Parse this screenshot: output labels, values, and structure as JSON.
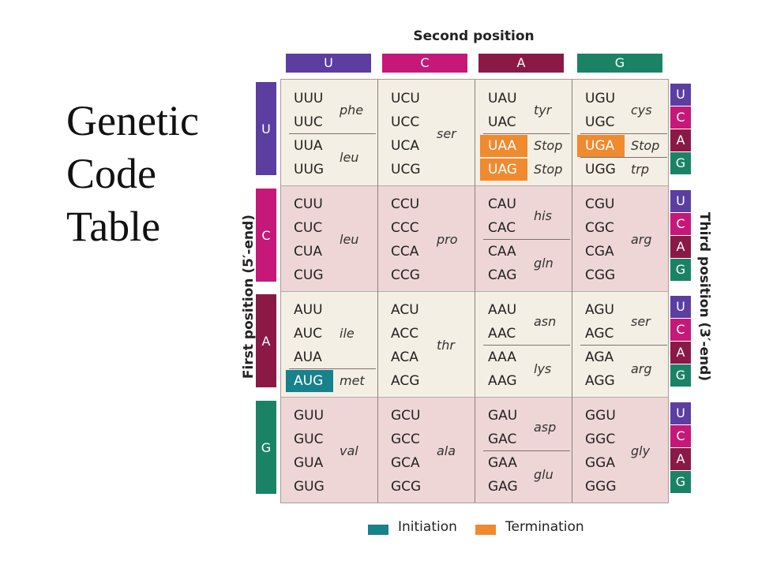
{
  "slide_title": [
    "Genetic",
    "Code",
    "Table"
  ],
  "labels": {
    "second_position": "Second position",
    "first_position": "First position (5′-end)",
    "third_position": "Third position (3′-end)"
  },
  "bases": [
    "U",
    "C",
    "A",
    "G"
  ],
  "base_colors": {
    "U": "#5b3ea0",
    "C": "#c51879",
    "A": "#8a1a45",
    "G": "#1a8366"
  },
  "legend": {
    "initiation": "Initiation",
    "termination": "Termination",
    "initiation_color": "#17818c",
    "termination_color": "#ef8a2f"
  },
  "table": [
    [
      {
        "codons": [
          "UUU",
          "UUC",
          "UUA",
          "UUG"
        ],
        "aa": [
          {
            "label": "phe",
            "span": [
              0,
              1
            ]
          },
          {
            "label": "leu",
            "span": [
              2,
              3
            ]
          }
        ],
        "seps": [
          2
        ],
        "highlight": {}
      },
      {
        "codons": [
          "UCU",
          "UCC",
          "UCA",
          "UCG"
        ],
        "aa": [
          {
            "label": "ser",
            "span": [
              0,
              3
            ]
          }
        ],
        "seps": [],
        "highlight": {}
      },
      {
        "codons": [
          "UAU",
          "UAC",
          "UAA",
          "UAG"
        ],
        "aa": [
          {
            "label": "tyr",
            "span": [
              0,
              1
            ]
          },
          {
            "label": "Stop",
            "span": [
              2,
              2
            ]
          },
          {
            "label": "Stop",
            "span": [
              3,
              3
            ]
          }
        ],
        "seps": [
          2
        ],
        "highlight": {
          "2": "term",
          "3": "term"
        }
      },
      {
        "codons": [
          "UGU",
          "UGC",
          "UGA",
          "UGG"
        ],
        "aa": [
          {
            "label": "cys",
            "span": [
              0,
              1
            ]
          },
          {
            "label": "Stop",
            "span": [
              2,
              2
            ]
          },
          {
            "label": "trp",
            "span": [
              3,
              3
            ]
          }
        ],
        "seps": [
          2,
          3
        ],
        "highlight": {
          "2": "term"
        }
      }
    ],
    [
      {
        "codons": [
          "CUU",
          "CUC",
          "CUA",
          "CUG"
        ],
        "aa": [
          {
            "label": "leu",
            "span": [
              0,
              3
            ]
          }
        ],
        "seps": [],
        "highlight": {}
      },
      {
        "codons": [
          "CCU",
          "CCC",
          "CCA",
          "CCG"
        ],
        "aa": [
          {
            "label": "pro",
            "span": [
              0,
              3
            ]
          }
        ],
        "seps": [],
        "highlight": {}
      },
      {
        "codons": [
          "CAU",
          "CAC",
          "CAA",
          "CAG"
        ],
        "aa": [
          {
            "label": "his",
            "span": [
              0,
              1
            ]
          },
          {
            "label": "gln",
            "span": [
              2,
              3
            ]
          }
        ],
        "seps": [
          2
        ],
        "highlight": {}
      },
      {
        "codons": [
          "CGU",
          "CGC",
          "CGA",
          "CGG"
        ],
        "aa": [
          {
            "label": "arg",
            "span": [
              0,
              3
            ]
          }
        ],
        "seps": [],
        "highlight": {}
      }
    ],
    [
      {
        "codons": [
          "AUU",
          "AUC",
          "AUA",
          "AUG"
        ],
        "aa": [
          {
            "label": "ile",
            "span": [
              0,
              2
            ]
          },
          {
            "label": "met",
            "span": [
              3,
              3
            ]
          }
        ],
        "seps": [
          3
        ],
        "highlight": {
          "3": "init"
        }
      },
      {
        "codons": [
          "ACU",
          "ACC",
          "ACA",
          "ACG"
        ],
        "aa": [
          {
            "label": "thr",
            "span": [
              0,
              3
            ]
          }
        ],
        "seps": [],
        "highlight": {}
      },
      {
        "codons": [
          "AAU",
          "AAC",
          "AAA",
          "AAG"
        ],
        "aa": [
          {
            "label": "asn",
            "span": [
              0,
              1
            ]
          },
          {
            "label": "lys",
            "span": [
              2,
              3
            ]
          }
        ],
        "seps": [
          2
        ],
        "highlight": {}
      },
      {
        "codons": [
          "AGU",
          "AGC",
          "AGA",
          "AGG"
        ],
        "aa": [
          {
            "label": "ser",
            "span": [
              0,
              1
            ]
          },
          {
            "label": "arg",
            "span": [
              2,
              3
            ]
          }
        ],
        "seps": [
          2
        ],
        "highlight": {}
      }
    ],
    [
      {
        "codons": [
          "GUU",
          "GUC",
          "GUA",
          "GUG"
        ],
        "aa": [
          {
            "label": "val",
            "span": [
              0,
              3
            ]
          }
        ],
        "seps": [],
        "highlight": {}
      },
      {
        "codons": [
          "GCU",
          "GCC",
          "GCA",
          "GCG"
        ],
        "aa": [
          {
            "label": "ala",
            "span": [
              0,
              3
            ]
          }
        ],
        "seps": [],
        "highlight": {}
      },
      {
        "codons": [
          "GAU",
          "GAC",
          "GAA",
          "GAG"
        ],
        "aa": [
          {
            "label": "asp",
            "span": [
              0,
              1
            ]
          },
          {
            "label": "glu",
            "span": [
              2,
              3
            ]
          }
        ],
        "seps": [
          2
        ],
        "highlight": {}
      },
      {
        "codons": [
          "GGU",
          "GGC",
          "GGA",
          "GGG"
        ],
        "aa": [
          {
            "label": "gly",
            "span": [
              0,
              3
            ]
          }
        ],
        "seps": [],
        "highlight": {}
      }
    ]
  ]
}
